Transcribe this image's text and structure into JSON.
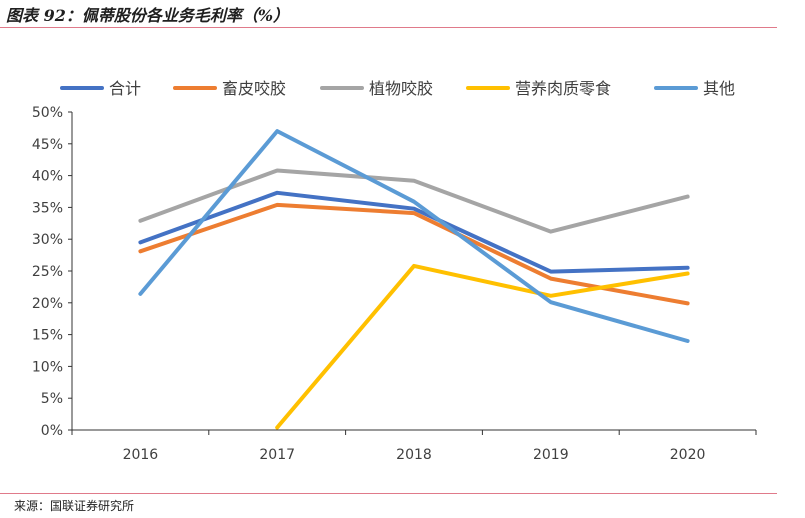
{
  "figure": {
    "title": "图表 92：佩蒂股份各业务毛利率（%）",
    "source": "来源：国联证券研究所"
  },
  "chart_data": {
    "type": "line",
    "title": "",
    "xlabel": "",
    "ylabel": "",
    "x": [
      "2016",
      "2017",
      "2018",
      "2019",
      "2020"
    ],
    "ylim": [
      0,
      50
    ],
    "yticks": [
      "0%",
      "5%",
      "10%",
      "15%",
      "20%",
      "25%",
      "30%",
      "35%",
      "40%",
      "45%",
      "50%"
    ],
    "grid": false,
    "legend": "top",
    "series": [
      {
        "name": "合计",
        "color": "#4472C4",
        "values": [
          29.5,
          37.3,
          34.8,
          24.9,
          25.5
        ]
      },
      {
        "name": "畜皮咬胶",
        "color": "#ED7D31",
        "values": [
          28.1,
          35.4,
          34.1,
          23.8,
          19.9
        ]
      },
      {
        "name": "植物咬胶",
        "color": "#A5A5A5",
        "values": [
          32.9,
          40.8,
          39.2,
          31.2,
          36.7
        ]
      },
      {
        "name": "营养肉质零食",
        "color": "#FFC000",
        "values": [
          null,
          0.4,
          25.8,
          21.1,
          24.6
        ]
      },
      {
        "name": "其他",
        "color": "#5B9BD5",
        "values": [
          21.4,
          47.0,
          35.9,
          20.1,
          14.0
        ]
      }
    ]
  }
}
